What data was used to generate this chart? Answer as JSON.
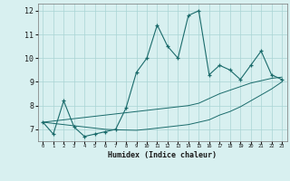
{
  "xlabel": "Humidex (Indice chaleur)",
  "bg_color": "#d8f0f0",
  "grid_color": "#aad4d4",
  "line_color": "#1a6b6b",
  "x_data": [
    0,
    1,
    2,
    3,
    4,
    5,
    6,
    7,
    8,
    9,
    10,
    11,
    12,
    13,
    14,
    15,
    16,
    17,
    18,
    19,
    20,
    21,
    22,
    23
  ],
  "y_main": [
    7.3,
    6.8,
    8.2,
    7.1,
    6.7,
    6.8,
    6.9,
    7.0,
    7.9,
    9.4,
    10.0,
    11.4,
    10.5,
    10.0,
    11.8,
    12.0,
    9.3,
    9.7,
    9.5,
    9.1,
    9.7,
    10.3,
    9.3,
    9.1
  ],
  "y_upper": [
    7.3,
    7.35,
    7.4,
    7.45,
    7.5,
    7.55,
    7.6,
    7.65,
    7.7,
    7.75,
    7.8,
    7.85,
    7.9,
    7.95,
    8.0,
    8.1,
    8.3,
    8.5,
    8.65,
    8.8,
    8.95,
    9.05,
    9.15,
    9.2
  ],
  "y_lower": [
    7.3,
    7.25,
    7.2,
    7.15,
    7.1,
    7.05,
    7.0,
    6.98,
    6.97,
    6.96,
    7.0,
    7.05,
    7.1,
    7.15,
    7.2,
    7.3,
    7.4,
    7.6,
    7.75,
    7.95,
    8.2,
    8.45,
    8.7,
    9.0
  ],
  "ylim": [
    6.5,
    12.3
  ],
  "xlim": [
    -0.5,
    23.5
  ],
  "yticks": [
    7,
    8,
    9,
    10,
    11,
    12
  ],
  "xticks": [
    0,
    1,
    2,
    3,
    4,
    5,
    6,
    7,
    8,
    9,
    10,
    11,
    12,
    13,
    14,
    15,
    16,
    17,
    18,
    19,
    20,
    21,
    22,
    23
  ]
}
